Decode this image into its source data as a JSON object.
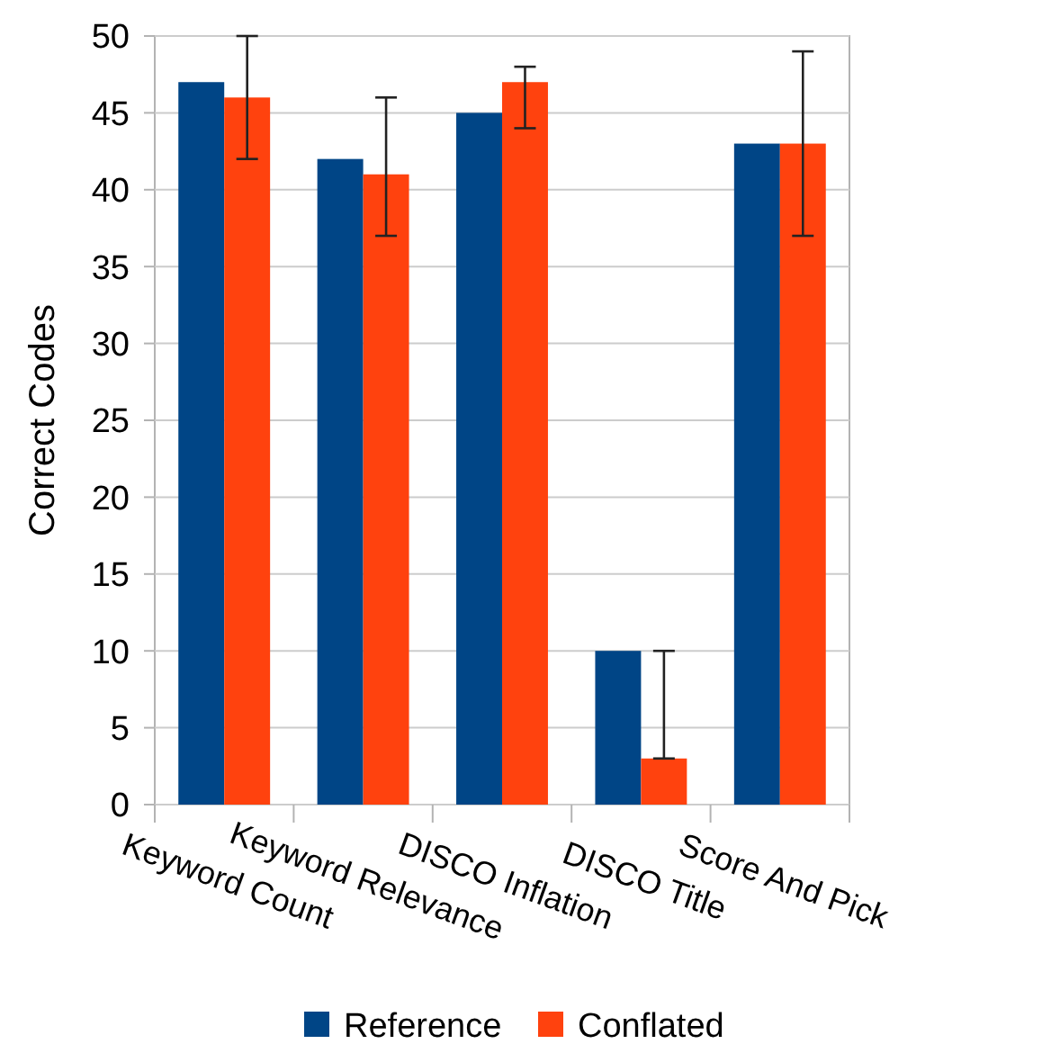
{
  "chart_data": {
    "type": "bar",
    "ylabel": "Correct Codes",
    "categories": [
      "Keyword Count",
      "Keyword Relevance",
      "DISCO Inflation",
      "DISCO Title",
      "Score And Pick"
    ],
    "series": [
      {
        "name": "Reference",
        "color": "#004586",
        "values": [
          47,
          42,
          45,
          10,
          43
        ]
      },
      {
        "name": "Conflated",
        "color": "#ff420e",
        "values": [
          46,
          41,
          47,
          3,
          43
        ],
        "errors": [
          [
            42,
            50
          ],
          [
            37,
            46
          ],
          [
            44,
            48
          ],
          [
            3,
            10
          ],
          [
            37,
            49
          ]
        ]
      }
    ],
    "ylim": [
      0,
      50
    ],
    "yticks": [
      0,
      5,
      10,
      15,
      20,
      25,
      30,
      35,
      40,
      45,
      50
    ],
    "grid": "y",
    "legend": "bottom"
  }
}
